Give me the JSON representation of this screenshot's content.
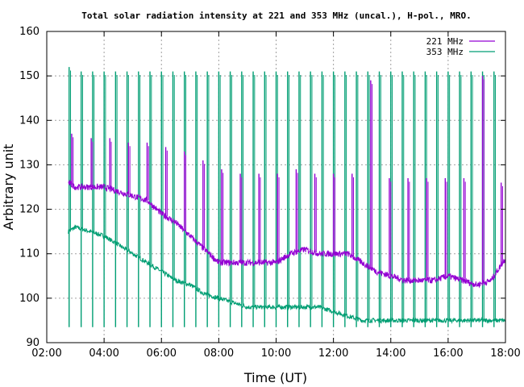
{
  "chart_data": {
    "type": "line",
    "title": "Total solar radiation intensity at 221 and 353 MHz (uncal.), H-pol., MRO.",
    "xlabel": "Time (UT)",
    "ylabel": "Arbitrary unit",
    "xlim": [
      2,
      18
    ],
    "ylim": [
      90,
      160
    ],
    "x_unit": "hours UT",
    "xticks": [
      2,
      4,
      6,
      8,
      10,
      12,
      14,
      16,
      18
    ],
    "xtick_labels": [
      "02:00",
      "04:00",
      "06:00",
      "08:00",
      "10:00",
      "12:00",
      "14:00",
      "16:00",
      "18:00"
    ],
    "yticks": [
      90,
      100,
      110,
      120,
      130,
      140,
      150,
      160
    ],
    "ytick_labels": [
      "90",
      "100",
      "110",
      "120",
      "130",
      "140",
      "150",
      "160"
    ],
    "grid": true,
    "legend_position": "top-right",
    "series": [
      {
        "name": "221 MHz",
        "color": "#9400d3",
        "x": [
          2.75,
          3.0,
          3.5,
          4.0,
          4.5,
          5.0,
          5.5,
          6.0,
          6.5,
          7.0,
          7.5,
          8.0,
          8.5,
          9.0,
          9.5,
          10.0,
          10.5,
          11.0,
          11.5,
          12.0,
          12.5,
          13.0,
          13.5,
          14.0,
          14.5,
          15.0,
          15.5,
          16.0,
          16.5,
          17.0,
          17.5,
          18.0
        ],
        "y": [
          126,
          125,
          125,
          125,
          124,
          123,
          122,
          119,
          117,
          114,
          111,
          108,
          108,
          108,
          108,
          108,
          110,
          111,
          110,
          110,
          110,
          108,
          106,
          105,
          104,
          104,
          104,
          105,
          104,
          103,
          104,
          109
        ],
        "spike_x": [
          2.87,
          3.55,
          4.2,
          4.85,
          5.5,
          6.15,
          6.8,
          7.45,
          8.1,
          8.75,
          9.4,
          10.05,
          10.7,
          11.35,
          12.0,
          12.65,
          13.3,
          13.95,
          14.6,
          15.25,
          15.9,
          16.55,
          17.2,
          17.85
        ],
        "spike_top": [
          137,
          136,
          136,
          135,
          135,
          134,
          133,
          131,
          129,
          128,
          128,
          128,
          129,
          128,
          128,
          128,
          149,
          127,
          127,
          127,
          127,
          127,
          150,
          126
        ]
      },
      {
        "name": "353 MHz",
        "color": "#009e73",
        "x": [
          2.75,
          3.0,
          3.5,
          4.0,
          4.5,
          5.0,
          5.5,
          6.0,
          6.5,
          7.0,
          7.5,
          8.0,
          8.5,
          9.0,
          9.5,
          10.0,
          10.5,
          11.0,
          11.5,
          12.0,
          12.5,
          13.0,
          13.5,
          14.0,
          14.5,
          15.0,
          15.5,
          16.0,
          16.5,
          17.0,
          17.5,
          18.0
        ],
        "y": [
          115,
          116,
          115,
          114,
          112,
          110,
          108,
          106,
          104,
          103,
          101,
          100,
          99,
          98,
          98,
          98,
          98,
          98,
          98,
          97,
          96,
          95,
          95,
          95,
          95,
          95,
          95,
          95,
          95,
          95,
          95,
          95
        ],
        "spike_x": [
          2.78,
          3.2,
          3.6,
          4.0,
          4.4,
          4.8,
          5.2,
          5.6,
          6.0,
          6.4,
          6.8,
          7.2,
          7.6,
          8.0,
          8.4,
          8.8,
          9.2,
          9.6,
          10.0,
          10.4,
          10.8,
          11.2,
          11.6,
          12.0,
          12.4,
          12.8,
          13.2,
          13.6,
          14.0,
          14.4,
          14.8,
          15.2,
          15.6,
          16.0,
          16.4,
          16.8,
          17.2,
          17.6
        ],
        "spike_top": [
          152,
          151,
          151,
          151,
          151,
          151,
          151,
          151,
          151,
          151,
          151,
          151,
          151,
          151,
          151,
          151,
          151,
          151,
          151,
          151,
          151,
          151,
          151,
          151,
          151,
          151,
          151,
          151,
          151,
          151,
          151,
          151,
          151,
          151,
          151,
          151,
          151,
          151
        ]
      }
    ]
  }
}
